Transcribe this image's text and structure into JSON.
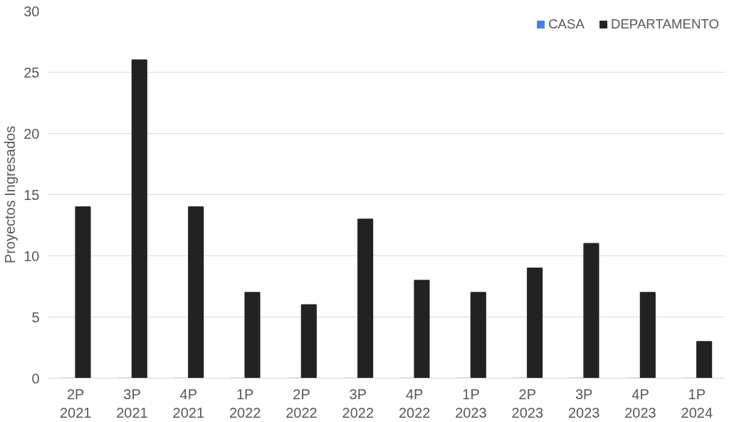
{
  "chart_data": {
    "type": "bar",
    "ylabel": "Proyectos Ingresados",
    "categories": [
      "2P\n2021",
      "3P\n2021",
      "4P\n2021",
      "1P\n2022",
      "2P\n2022",
      "3P\n2022",
      "4P\n2022",
      "1P\n2023",
      "2P\n2023",
      "3P\n2023",
      "4P\n2023",
      "1P\n2024"
    ],
    "series": [
      {
        "name": "CASA",
        "color": "#3c82f0",
        "values": [
          0,
          0,
          0,
          0,
          0,
          0,
          0,
          0,
          0,
          0,
          0,
          0
        ]
      },
      {
        "name": "DEPARTAMENTO",
        "color": "#222222",
        "values": [
          14,
          26,
          14,
          7,
          6,
          13,
          8,
          7,
          9,
          11,
          7,
          3
        ]
      }
    ],
    "ylim": [
      0,
      30
    ],
    "yticks": [
      0,
      5,
      10,
      15,
      20,
      25,
      30
    ],
    "grid": "y",
    "legend": "top right"
  }
}
